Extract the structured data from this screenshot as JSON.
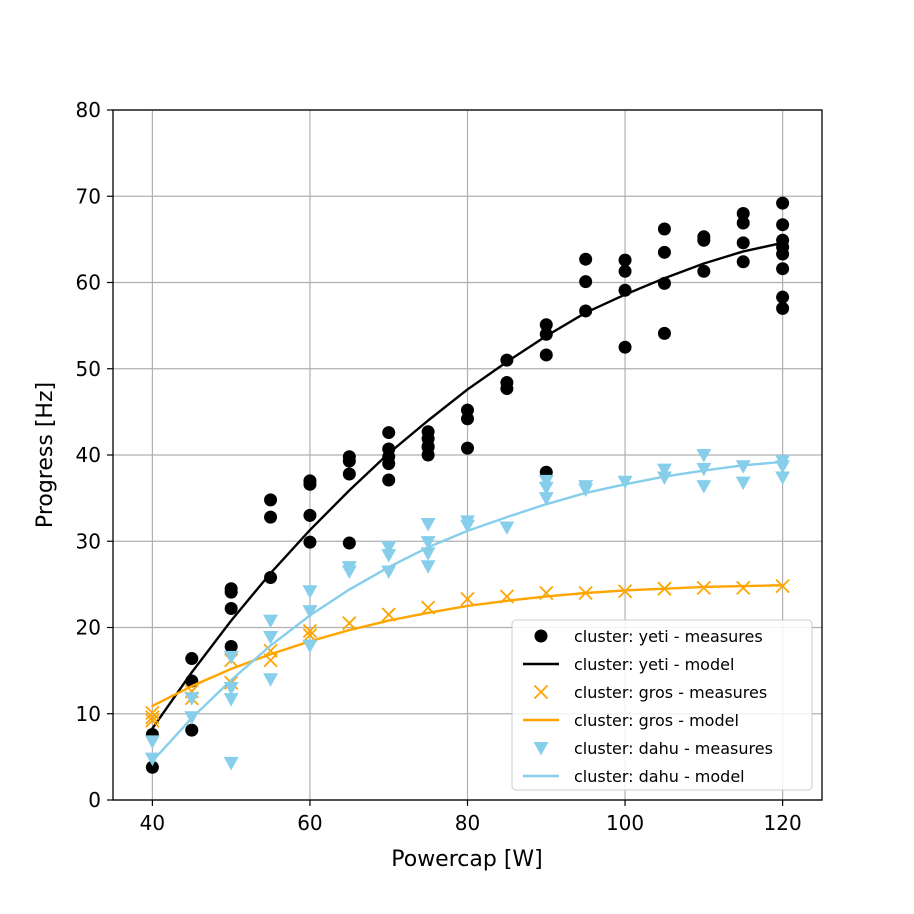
{
  "chart_data": {
    "type": "scatter",
    "title": "",
    "xlabel": "Powercap [W]",
    "ylabel": "Progress [Hz]",
    "xlim": [
      35,
      125
    ],
    "ylim": [
      0,
      80
    ],
    "xticks": [
      40,
      60,
      80,
      100,
      120
    ],
    "yticks": [
      0,
      10,
      20,
      30,
      40,
      50,
      60,
      70,
      80
    ],
    "grid": true,
    "legend_position": "lower-right",
    "colors": {
      "yeti": "#000000",
      "gros": "#FFA500",
      "dahu": "#87CEEB",
      "grid": "#b0b0b0"
    },
    "series": [
      {
        "name": "cluster: yeti - measures",
        "kind": "scatter",
        "marker": "circle",
        "color": "#000000",
        "x": [
          40,
          40,
          45,
          45,
          45,
          50,
          50,
          50,
          50,
          55,
          55,
          55,
          60,
          60,
          60,
          60,
          65,
          65,
          65,
          65,
          70,
          70,
          70,
          70,
          70,
          75,
          75,
          75,
          75,
          75,
          80,
          80,
          80,
          85,
          85,
          85,
          90,
          90,
          90,
          90,
          95,
          95,
          95,
          100,
          100,
          100,
          100,
          105,
          105,
          105,
          105,
          110,
          110,
          110,
          115,
          115,
          115,
          115,
          120,
          120,
          120,
          120,
          120,
          120,
          120,
          120
        ],
        "y": [
          7.6,
          3.8,
          16.4,
          13.8,
          8.1,
          24.5,
          24.1,
          22.2,
          17.8,
          34.8,
          32.8,
          25.8,
          37.0,
          36.6,
          33.0,
          29.9,
          39.8,
          39.3,
          37.8,
          29.8,
          42.6,
          40.7,
          39.8,
          39.0,
          37.1,
          42.7,
          41.9,
          41.0,
          40.9,
          40.0,
          45.2,
          44.2,
          40.8,
          51.0,
          48.4,
          47.7,
          55.1,
          54.0,
          51.6,
          38.0,
          62.7,
          60.1,
          56.7,
          62.6,
          61.3,
          59.1,
          52.5,
          66.2,
          63.5,
          59.9,
          54.1,
          65.3,
          64.9,
          61.3,
          68.0,
          66.9,
          64.6,
          62.4,
          69.2,
          66.7,
          64.9,
          64.1,
          63.3,
          61.6,
          58.3,
          57.0
        ]
      },
      {
        "name": "cluster: yeti - model",
        "kind": "line",
        "color": "#000000",
        "x": [
          40,
          45,
          50,
          55,
          60,
          65,
          70,
          75,
          80,
          85,
          90,
          95,
          100,
          105,
          110,
          115,
          120
        ],
        "y": [
          8.3,
          14.8,
          20.8,
          26.3,
          31.3,
          35.9,
          40.2,
          44.0,
          47.6,
          50.8,
          53.8,
          56.5,
          58.6,
          60.5,
          62.2,
          63.6,
          64.6
        ]
      },
      {
        "name": "cluster: gros - measures",
        "kind": "scatter",
        "marker": "x",
        "color": "#FFA500",
        "x": [
          40,
          40,
          40,
          45,
          45,
          50,
          50,
          55,
          55,
          60,
          60,
          65,
          70,
          75,
          80,
          85,
          90,
          95,
          100,
          105,
          110,
          115,
          120
        ],
        "y": [
          10.1,
          9.6,
          9.2,
          12.6,
          11.8,
          16.2,
          13.6,
          17.3,
          16.2,
          19.6,
          19.1,
          20.5,
          21.5,
          22.3,
          23.3,
          23.6,
          24.0,
          24.0,
          24.2,
          24.5,
          24.6,
          24.6,
          24.8
        ]
      },
      {
        "name": "cluster: gros - model",
        "kind": "line",
        "color": "#FFA500",
        "x": [
          40,
          45,
          50,
          55,
          60,
          65,
          70,
          75,
          80,
          85,
          90,
          95,
          100,
          105,
          110,
          115,
          120
        ],
        "y": [
          10.9,
          13.2,
          15.2,
          16.9,
          18.4,
          19.7,
          20.8,
          21.7,
          22.5,
          23.1,
          23.6,
          24.0,
          24.3,
          24.5,
          24.7,
          24.8,
          24.9
        ]
      },
      {
        "name": "cluster: dahu - measures",
        "kind": "scatter",
        "marker": "triangle-down",
        "color": "#87CEEB",
        "x": [
          40,
          40,
          45,
          45,
          50,
          50,
          50,
          50,
          55,
          55,
          55,
          60,
          60,
          60,
          65,
          65,
          70,
          70,
          70,
          75,
          75,
          75,
          75,
          80,
          80,
          85,
          90,
          90,
          90,
          95,
          95,
          100,
          105,
          105,
          110,
          110,
          110,
          115,
          115,
          120,
          120,
          120
        ],
        "y": [
          6.8,
          4.8,
          11.8,
          9.6,
          16.6,
          13.0,
          11.7,
          4.3,
          20.8,
          18.9,
          14.0,
          24.2,
          21.9,
          17.9,
          27.0,
          26.5,
          29.3,
          28.4,
          26.5,
          32.0,
          29.9,
          28.6,
          27.1,
          32.3,
          31.8,
          31.6,
          37.0,
          36.2,
          35.0,
          36.4,
          36.0,
          36.9,
          38.3,
          37.4,
          40.0,
          38.4,
          36.4,
          38.7,
          36.8,
          39.3,
          38.7,
          37.4
        ]
      },
      {
        "name": "cluster: dahu - model",
        "kind": "line",
        "color": "#87CEEB",
        "x": [
          40,
          45,
          50,
          55,
          60,
          65,
          70,
          75,
          80,
          85,
          90,
          95,
          100,
          105,
          110,
          115,
          120
        ],
        "y": [
          4.5,
          9.5,
          13.9,
          17.9,
          21.4,
          24.4,
          27.0,
          29.3,
          31.2,
          32.8,
          34.3,
          35.6,
          36.6,
          37.5,
          38.2,
          38.8,
          39.2
        ]
      }
    ]
  }
}
